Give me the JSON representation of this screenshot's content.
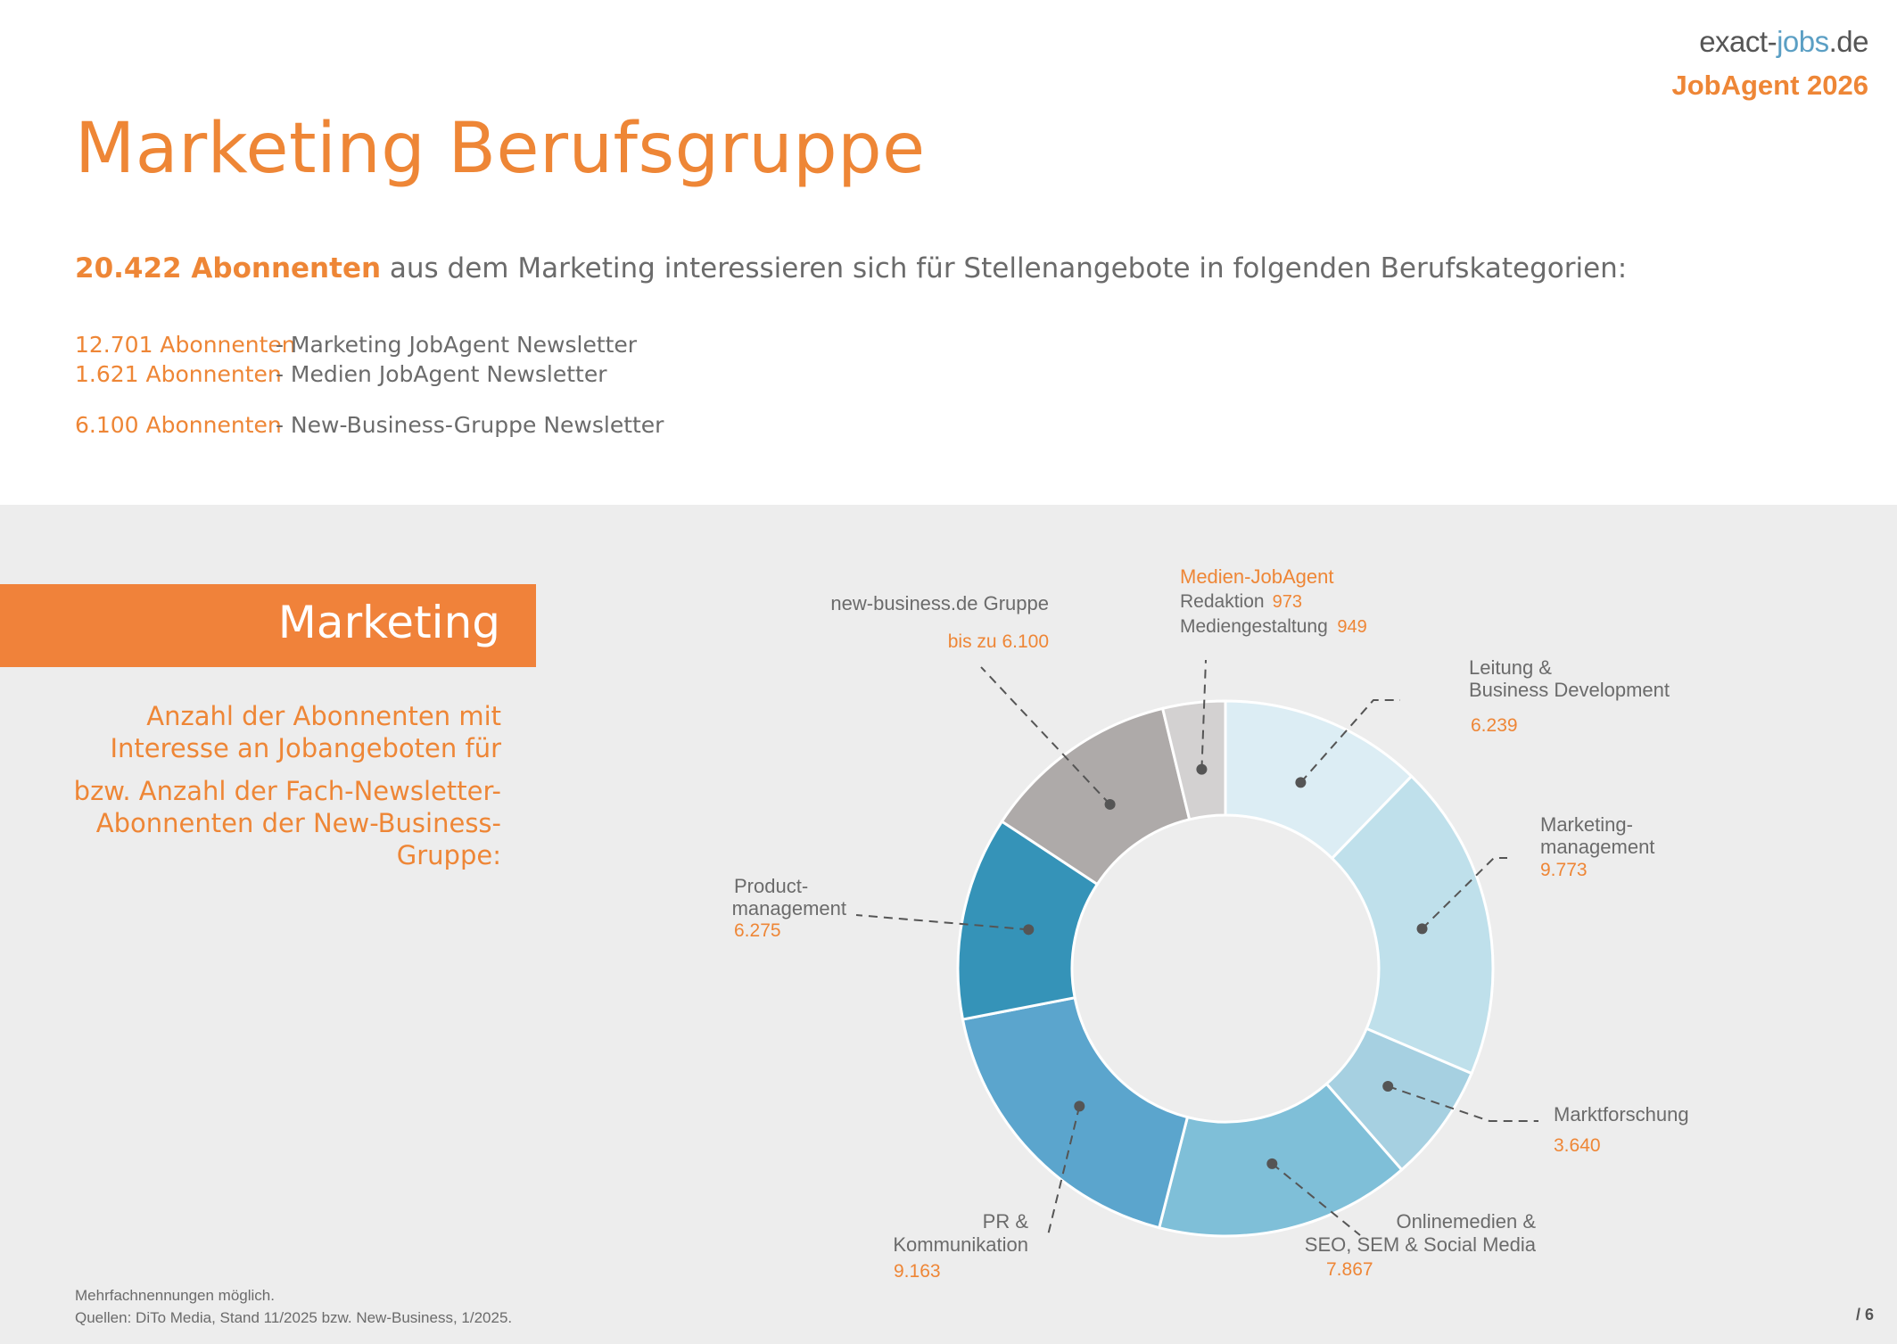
{
  "header": {
    "logo_prefix": "exact-",
    "logo_jobs": "jobs",
    "logo_tld": ".de",
    "badge": "JobAgent 2026",
    "title": "Marketing Berufsgruppe"
  },
  "intro": {
    "highlight": "20.422 Abonnenten",
    "text": " aus dem Marketing interessieren sich für Stellenangebote in folgenden Berufskategorien:"
  },
  "newsletters": [
    {
      "count": "12.701 Abonnenten",
      "label": " - Marketing JobAgent Newsletter"
    },
    {
      "count": "1.621 Abonnenten",
      "label": " - Medien JobAgent Newsletter"
    },
    {
      "count": "6.100 Abonnenten",
      "label": " - New-Business-Gruppe Newsletter"
    }
  ],
  "banner": {
    "label": "Marketing"
  },
  "description": {
    "p1": "Anzahl der Abonnenten mit Interesse an Jobangeboten für",
    "p2": "bzw. Anzahl der Fach-Newsletter-Abonnenten der New-Business-Gruppe:"
  },
  "footer": {
    "note": "Mehrfachnennungen möglich.",
    "source": "Quellen: DiTo Media, Stand 11/2025 bzw. New-Business, 1/2025.",
    "page": "/ 6"
  },
  "colors": {
    "accent": "#ee8636",
    "text": "#6b6b6b",
    "leader": "#555555"
  },
  "chart_data": {
    "type": "donut",
    "title": "",
    "segments": [
      {
        "name_lines": [
          "Leitung &",
          "Business Development"
        ],
        "value": 6239,
        "value_label": "6.239",
        "color": "#dcedf4"
      },
      {
        "name_lines": [
          "Marketing-",
          "management"
        ],
        "value": 9773,
        "value_label": "9.773",
        "color": "#bfe0eb"
      },
      {
        "name_lines": [
          "Marktforschung"
        ],
        "value": 3640,
        "value_label": "3.640",
        "color": "#a6d0e1"
      },
      {
        "name_lines": [
          "Onlinemedien &",
          "SEO, SEM & Social Media"
        ],
        "value": 7867,
        "value_label": "7.867",
        "color": "#7fbfd8"
      },
      {
        "name_lines": [
          "PR &",
          "Kommunikation"
        ],
        "value": 9163,
        "value_label": "9.163",
        "color": "#5ba5cd"
      },
      {
        "name_lines": [
          "Product-",
          "management"
        ],
        "value": 6275,
        "value_label": "6.275",
        "color": "#3593b8"
      },
      {
        "name_lines": [
          "new-business.de Gruppe"
        ],
        "value": 6100,
        "value_label": "bis zu 6.100",
        "color": "#aeaaa9"
      },
      {
        "name_lines": [
          "Medien-JobAgent"
        ],
        "value": 1922,
        "value_label": "",
        "color": "#d3d1d1",
        "sub_items": [
          {
            "name": "Redaktion",
            "value_label": "973"
          },
          {
            "name": "Mediengestaltung",
            "value_label": "949"
          }
        ]
      }
    ]
  }
}
